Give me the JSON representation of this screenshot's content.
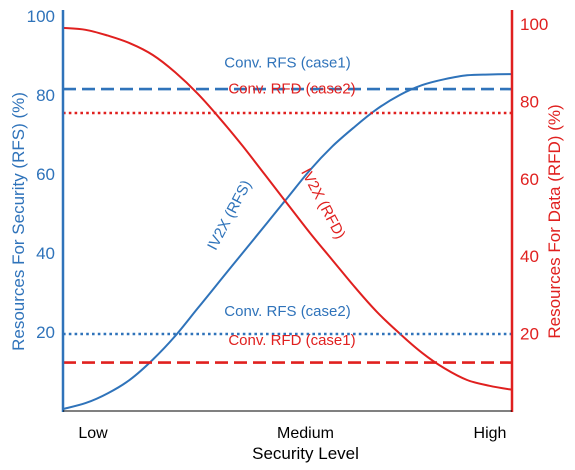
{
  "chart_data": {
    "type": "line",
    "title": "",
    "xlabel": "Security Level",
    "x_ticks": [
      "Low",
      "Medium",
      "High"
    ],
    "xlim": [
      0,
      100
    ],
    "y_left": {
      "label": "Resources For Security (RFS) (%)",
      "ticks": [
        "20",
        "40",
        "60",
        "80",
        "100"
      ],
      "ylim": [
        0,
        100
      ],
      "color": "#2f73ba"
    },
    "y_right": {
      "label": "Resources For Data (RFD) (%)",
      "ticks": [
        "20",
        "40",
        "60",
        "80",
        "100"
      ],
      "ylim": [
        0,
        100
      ],
      "color": "#e0201f"
    },
    "grid": false,
    "series": [
      {
        "name": "IV2X (RFS)",
        "axis": "left",
        "style": "solid",
        "color": "#2f73ba",
        "x": [
          0,
          5,
          10,
          15,
          20,
          25,
          30,
          35,
          40,
          45,
          50,
          55,
          60,
          65,
          70,
          75,
          80,
          85,
          90,
          95,
          100
        ],
        "y": [
          0.5,
          2,
          4.5,
          8,
          13,
          19,
          26,
          33,
          40,
          47,
          54,
          61,
          67,
          72,
          76.5,
          80,
          82.5,
          84,
          85,
          85.2,
          85.3
        ]
      },
      {
        "name": "IV2X (RFD)",
        "axis": "right",
        "style": "solid",
        "color": "#e0201f",
        "x": [
          0,
          5,
          10,
          15,
          20,
          25,
          30,
          35,
          40,
          45,
          50,
          55,
          60,
          65,
          70,
          75,
          80,
          85,
          90,
          95,
          100
        ],
        "y": [
          99,
          98.5,
          97,
          95,
          92,
          87.5,
          82,
          75.5,
          68.5,
          61,
          53.5,
          46,
          39,
          32,
          25.5,
          20,
          15,
          11,
          8,
          6.5,
          5.5
        ]
      },
      {
        "name": "Conv. RFS (case1)",
        "axis": "left",
        "style": "dashed",
        "color": "#2f73ba",
        "x": [
          0,
          100
        ],
        "y": [
          81.5,
          81.5
        ]
      },
      {
        "name": "Conv. RFD (case2)",
        "axis": "right",
        "style": "dotted",
        "color": "#e0201f",
        "x": [
          0,
          100
        ],
        "y": [
          77,
          77
        ]
      },
      {
        "name": "Conv. RFS (case2)",
        "axis": "left",
        "style": "dotted",
        "color": "#2f73ba",
        "x": [
          0,
          100
        ],
        "y": [
          19.5,
          19.5
        ]
      },
      {
        "name": "Conv. RFD (case1)",
        "axis": "right",
        "style": "dashed",
        "color": "#e0201f",
        "x": [
          0,
          100
        ],
        "y": [
          12.5,
          12.5
        ]
      }
    ],
    "annotations": [
      {
        "text": "Conv. RFS (case1)",
        "color": "#2f73ba",
        "x": 50,
        "y": 87,
        "axis": "left",
        "rotate": 0
      },
      {
        "text": "Conv. RFD (case2)",
        "color": "#e0201f",
        "x": 51,
        "y": 82,
        "axis": "right",
        "rotate": 0
      },
      {
        "text": "Conv. RFS (case2)",
        "color": "#2f73ba",
        "x": 50,
        "y": 24,
        "axis": "left",
        "rotate": 0
      },
      {
        "text": "Conv. RFD (case1)",
        "color": "#e0201f",
        "x": 51,
        "y": 17,
        "axis": "right",
        "rotate": 0
      },
      {
        "text": "IV2X (RFS)",
        "color": "#2f73ba",
        "x": 38,
        "y": 49,
        "axis": "left",
        "rotate": -62
      },
      {
        "text": "IV2X (RFD)",
        "color": "#e0201f",
        "x": 57,
        "y": 53,
        "axis": "right",
        "rotate": 62
      }
    ]
  }
}
